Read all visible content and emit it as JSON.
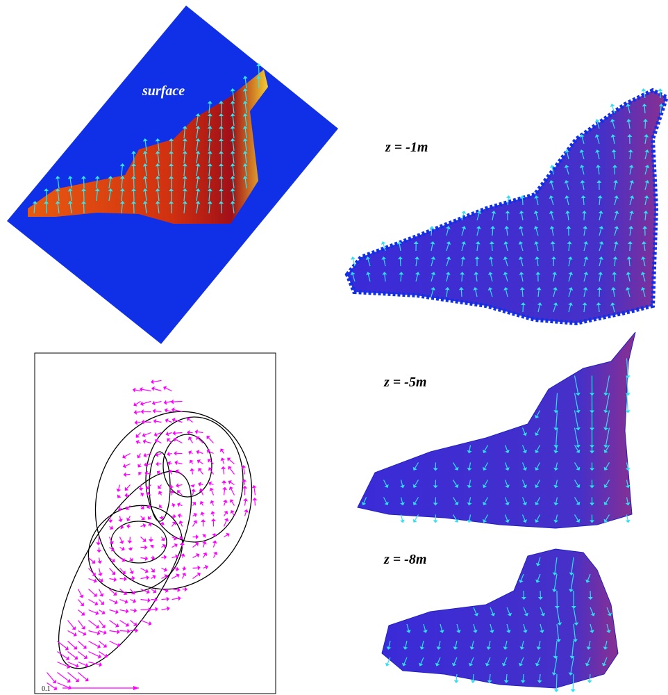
{
  "panels": {
    "surface": {
      "label": "surface"
    },
    "upper": {
      "label": "z = -1m"
    },
    "middle": {
      "label": "z = -5m"
    },
    "lower": {
      "label": "z = -8m"
    }
  },
  "scale": {
    "label": "0.1"
  }
}
